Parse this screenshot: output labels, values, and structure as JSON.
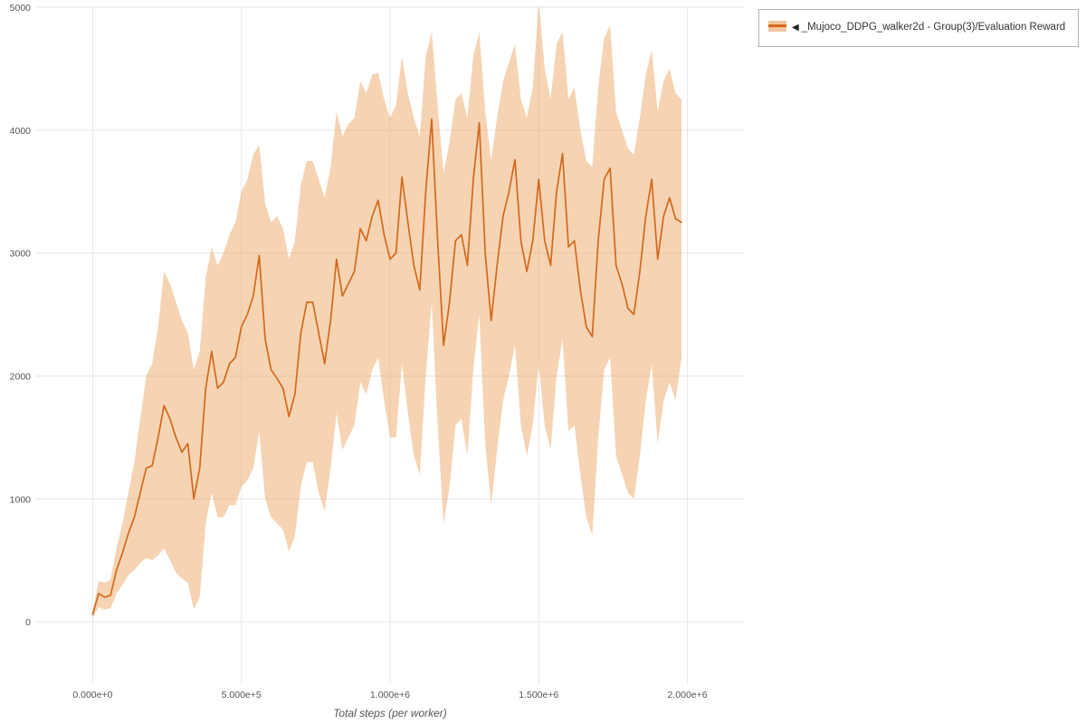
{
  "legend": {
    "collapse_icon": "◀",
    "label": "_Mujoco_DDPG_walker2d - Group(3)/Evaluation Reward",
    "line_color": "#d2691e",
    "band_color": "#f2c59e"
  },
  "axes": {
    "x_label": "Total steps (per worker)",
    "x_ticks": [
      {
        "value": 0,
        "label": "0.000e+0"
      },
      {
        "value": 500000,
        "label": "5.000e+5"
      },
      {
        "value": 1000000,
        "label": "1.000e+6"
      },
      {
        "value": 1500000,
        "label": "1.500e+6"
      },
      {
        "value": 2000000,
        "label": "2.000e+6"
      }
    ],
    "y_ticks": [
      {
        "value": 0,
        "label": "0"
      },
      {
        "value": 1000,
        "label": "1000"
      },
      {
        "value": 2000,
        "label": "2000"
      },
      {
        "value": 3000,
        "label": "3000"
      },
      {
        "value": 4000,
        "label": "4000"
      },
      {
        "value": 5000,
        "label": "5000"
      }
    ]
  },
  "chart_data": {
    "type": "line",
    "title": "",
    "xlabel": "Total steps (per worker)",
    "ylabel": "",
    "xlim": [
      -190000,
      2190000
    ],
    "ylim": [
      -500,
      5000
    ],
    "grid": true,
    "legend_position": "top-right",
    "series": [
      {
        "name": "_Mujoco_DDPG_walker2d - Group(3)/Evaluation Reward",
        "color": "#d2691e",
        "band_color": "#eda766",
        "x": [
          0,
          20000,
          40000,
          60000,
          80000,
          100000,
          120000,
          140000,
          160000,
          180000,
          200000,
          220000,
          240000,
          260000,
          280000,
          300000,
          320000,
          340000,
          360000,
          380000,
          400000,
          420000,
          440000,
          460000,
          480000,
          500000,
          520000,
          540000,
          560000,
          580000,
          600000,
          620000,
          640000,
          660000,
          680000,
          700000,
          720000,
          740000,
          760000,
          780000,
          800000,
          820000,
          840000,
          860000,
          880000,
          900000,
          920000,
          940000,
          960000,
          980000,
          1000000,
          1020000,
          1040000,
          1060000,
          1080000,
          1100000,
          1120000,
          1140000,
          1160000,
          1180000,
          1200000,
          1220000,
          1240000,
          1260000,
          1280000,
          1300000,
          1320000,
          1340000,
          1360000,
          1380000,
          1400000,
          1420000,
          1440000,
          1460000,
          1480000,
          1500000,
          1520000,
          1540000,
          1560000,
          1580000,
          1600000,
          1620000,
          1640000,
          1660000,
          1680000,
          1700000,
          1720000,
          1740000,
          1760000,
          1780000,
          1800000,
          1820000,
          1840000,
          1860000,
          1880000,
          1900000,
          1920000,
          1940000,
          1960000,
          1980000
        ],
        "mean": [
          60,
          230,
          200,
          215,
          420,
          560,
          720,
          850,
          1050,
          1250,
          1270,
          1500,
          1760,
          1650,
          1500,
          1380,
          1450,
          1000,
          1250,
          1900,
          2200,
          1900,
          1950,
          2100,
          2150,
          2400,
          2500,
          2650,
          2980,
          2300,
          2050,
          1980,
          1900,
          1670,
          1850,
          2350,
          2600,
          2600,
          2350,
          2100,
          2450,
          2950,
          2650,
          2750,
          2850,
          3200,
          3100,
          3300,
          3430,
          3150,
          2950,
          3000,
          3620,
          3250,
          2900,
          2700,
          3500,
          4090,
          3100,
          2250,
          2600,
          3100,
          3150,
          2900,
          3600,
          4060,
          3000,
          2450,
          2900,
          3300,
          3500,
          3760,
          3100,
          2850,
          3100,
          3600,
          3100,
          2900,
          3500,
          3810,
          3050,
          3100,
          2700,
          2400,
          2320,
          3100,
          3600,
          3690,
          2900,
          2750,
          2550,
          2500,
          2850,
          3300,
          3600,
          2950,
          3300,
          3450,
          3280,
          3250
        ],
        "lower": [
          30,
          120,
          100,
          110,
          230,
          300,
          380,
          420,
          480,
          520,
          500,
          540,
          600,
          500,
          400,
          350,
          320,
          100,
          200,
          800,
          1050,
          850,
          850,
          950,
          950,
          1100,
          1150,
          1250,
          1550,
          1000,
          850,
          800,
          750,
          570,
          700,
          1100,
          1300,
          1300,
          1050,
          900,
          1250,
          1700,
          1400,
          1500,
          1600,
          1950,
          1850,
          2050,
          2150,
          1800,
          1500,
          1500,
          2100,
          1700,
          1350,
          1200,
          2000,
          2600,
          1600,
          800,
          1100,
          1600,
          1650,
          1350,
          2050,
          2500,
          1450,
          950,
          1400,
          1800,
          2000,
          2250,
          1600,
          1350,
          1600,
          2100,
          1600,
          1400,
          2000,
          2300,
          1550,
          1600,
          1200,
          850,
          700,
          1500,
          2050,
          2150,
          1350,
          1200,
          1050,
          1000,
          1350,
          1800,
          2100,
          1450,
          1800,
          1950,
          1800,
          2150
        ],
        "upper": [
          90,
          330,
          320,
          340,
          600,
          800,
          1050,
          1300,
          1650,
          2000,
          2100,
          2400,
          2850,
          2750,
          2600,
          2450,
          2350,
          2050,
          2200,
          2800,
          3050,
          2900,
          3000,
          3150,
          3250,
          3500,
          3600,
          3800,
          3880,
          3400,
          3250,
          3300,
          3200,
          2950,
          3100,
          3550,
          3750,
          3750,
          3600,
          3450,
          3700,
          4150,
          3950,
          4050,
          4100,
          4400,
          4300,
          4450,
          4470,
          4250,
          4100,
          4200,
          4600,
          4300,
          4100,
          3950,
          4600,
          4800,
          4200,
          3650,
          3900,
          4250,
          4300,
          4100,
          4600,
          4800,
          4150,
          3750,
          4100,
          4400,
          4550,
          4700,
          4250,
          4100,
          4350,
          5050,
          4500,
          4250,
          4700,
          4800,
          4250,
          4350,
          4000,
          3750,
          3700,
          4350,
          4750,
          4850,
          4150,
          4000,
          3850,
          3800,
          4100,
          4450,
          4650,
          4150,
          4400,
          4500,
          4300,
          4250
        ]
      }
    ]
  }
}
